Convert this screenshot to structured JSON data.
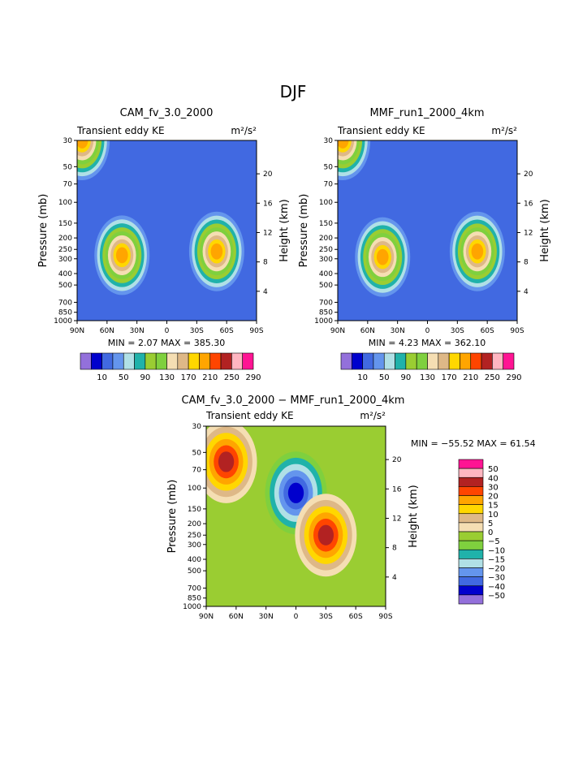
{
  "page": {
    "title": "DJF"
  },
  "chart_data": [
    {
      "type": "heatmap",
      "title": "CAM_fv_3.0_2000",
      "subtitle_left": "Transient eddy KE",
      "units": "m²/s²",
      "xlabel": "",
      "ylabel": "Pressure (mb)",
      "ylabel_right": "Height (km)",
      "x_ticks": [
        "90N",
        "60N",
        "30N",
        "0",
        "30S",
        "60S",
        "90S"
      ],
      "y_ticks": [
        "30",
        "50",
        "70",
        "100",
        "150",
        "200",
        "250",
        "300",
        "400",
        "500",
        "700",
        "850",
        "1000"
      ],
      "y_right_ticks": [
        "20",
        "16",
        "12",
        "8",
        "4"
      ],
      "stats": "MIN =    2.07   MAX = 385.30",
      "colorbar_labels": [
        "10",
        "50",
        "90",
        "130",
        "170",
        "210",
        "250",
        "290"
      ],
      "palette": [
        "#9370db",
        "#0000cd",
        "#4169e1",
        "#6495ed",
        "#b0e0e6",
        "#20b2aa",
        "#9acd32",
        "#7fd03e",
        "#f5deb3",
        "#deb887",
        "#ffd700",
        "#ffa500",
        "#ff4500",
        "#b22222",
        "#ffb6c1",
        "#ff1493"
      ],
      "features": [
        {
          "lat": 45,
          "p": 280,
          "peak": 385
        },
        {
          "lat": -50,
          "p": 260,
          "peak": 320
        },
        {
          "lat": 85,
          "p": 30,
          "peak": 300
        }
      ]
    },
    {
      "type": "heatmap",
      "title": "MMF_run1_2000_4km",
      "subtitle_left": "Transient eddy KE",
      "units": "m²/s²",
      "xlabel": "",
      "ylabel": "Pressure (mb)",
      "ylabel_right": "Height (km)",
      "x_ticks": [
        "90N",
        "60N",
        "30N",
        "0",
        "30S",
        "60S",
        "90S"
      ],
      "y_ticks": [
        "30",
        "50",
        "70",
        "100",
        "150",
        "200",
        "250",
        "300",
        "400",
        "500",
        "700",
        "850",
        "1000"
      ],
      "y_right_ticks": [
        "20",
        "16",
        "12",
        "8",
        "4"
      ],
      "stats": "MIN =    4.23   MAX = 362.10",
      "colorbar_labels": [
        "10",
        "50",
        "90",
        "130",
        "170",
        "210",
        "250",
        "290"
      ],
      "palette": [
        "#9370db",
        "#0000cd",
        "#4169e1",
        "#6495ed",
        "#b0e0e6",
        "#20b2aa",
        "#9acd32",
        "#7fd03e",
        "#f5deb3",
        "#deb887",
        "#ffd700",
        "#ffa500",
        "#ff4500",
        "#b22222",
        "#ffb6c1",
        "#ff1493"
      ],
      "features": [
        {
          "lat": 45,
          "p": 290,
          "peak": 362
        },
        {
          "lat": -50,
          "p": 260,
          "peak": 300
        },
        {
          "lat": 85,
          "p": 30,
          "peak": 290
        }
      ]
    },
    {
      "type": "heatmap",
      "title": "CAM_fv_3.0_2000 − MMF_run1_2000_4km",
      "subtitle_left": "Transient eddy KE",
      "units": "m²/s²",
      "xlabel": "",
      "ylabel": "Pressure (mb)",
      "ylabel_right": "Height (km)",
      "x_ticks": [
        "90N",
        "60N",
        "30N",
        "0",
        "30S",
        "60S",
        "90S"
      ],
      "y_ticks": [
        "30",
        "50",
        "70",
        "100",
        "150",
        "200",
        "250",
        "300",
        "400",
        "500",
        "700",
        "850",
        "1000"
      ],
      "y_right_ticks": [
        "20",
        "16",
        "12",
        "8",
        "4"
      ],
      "stats": "MIN = −55.52   MAX =  61.54",
      "colorbar_labels": [
        "50",
        "40",
        "30",
        "20",
        "15",
        "10",
        "5",
        "0",
        "−5",
        "−10",
        "−15",
        "−20",
        "−30",
        "−40",
        "−50"
      ],
      "palette": [
        "#ff1493",
        "#ffb6c1",
        "#b22222",
        "#ff4500",
        "#ffa500",
        "#ffd700",
        "#deb887",
        "#f5deb3",
        "#9acd32",
        "#7fd03e",
        "#20b2aa",
        "#b0e0e6",
        "#6495ed",
        "#4169e1",
        "#0000cd",
        "#9370db"
      ],
      "features": [
        {
          "lat": 70,
          "p": 60,
          "peak": 55
        },
        {
          "lat": 0,
          "p": 110,
          "peak": -55
        },
        {
          "lat": -30,
          "p": 250,
          "peak": 15
        }
      ]
    }
  ]
}
